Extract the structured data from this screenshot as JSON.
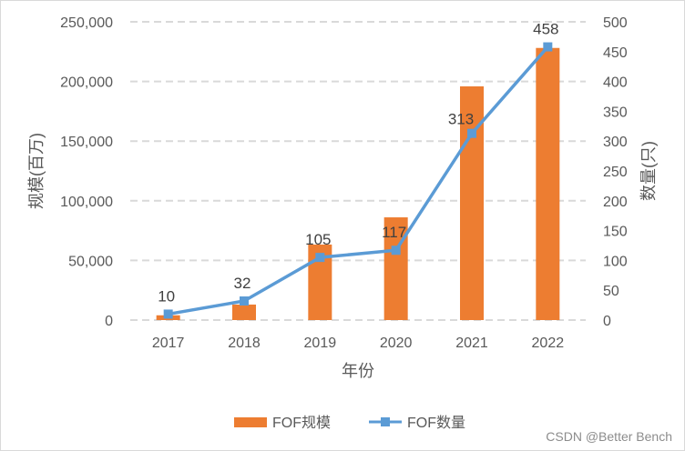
{
  "chart_data": {
    "type": "bar+line",
    "categories": [
      "2017",
      "2018",
      "2019",
      "2020",
      "2021",
      "2022"
    ],
    "xlabel": "年份",
    "ylabel": "规模(百万)",
    "y2label": "数量(只)",
    "ylim": [
      0,
      250000
    ],
    "y2lim": [
      0,
      500
    ],
    "yticks": [
      "0",
      "50,000",
      "100,000",
      "150,000",
      "200,000",
      "250,000"
    ],
    "y2ticks": [
      "0",
      "50",
      "100",
      "150",
      "200",
      "250",
      "300",
      "350",
      "400",
      "450",
      "500"
    ],
    "grid": true,
    "legend_position": "bottom",
    "series": [
      {
        "name": "FOF规模",
        "type": "bar",
        "axis": "left",
        "color": "#ED7D31",
        "values": [
          4000,
          13000,
          63300,
          86100,
          195900,
          228100
        ]
      },
      {
        "name": "FOF数量",
        "type": "line",
        "axis": "right",
        "color": "#5B9BD5",
        "values": [
          10,
          32,
          105,
          117,
          313,
          458
        ],
        "labels": [
          "10",
          "32",
          "105",
          "117",
          "313",
          "458"
        ]
      }
    ]
  },
  "watermark": "CSDN @Better Bench"
}
